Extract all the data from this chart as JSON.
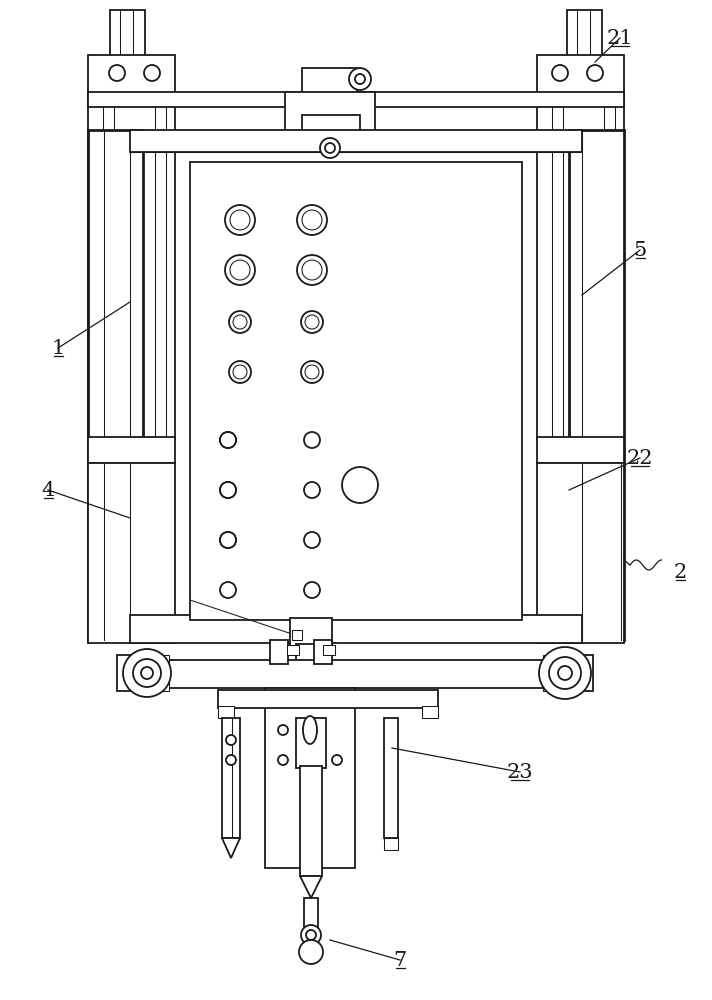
{
  "bg": "#ffffff",
  "lc": "#1a1a1a",
  "lw": 1.3,
  "tlw": 0.75,
  "thk": 2.0,
  "fs": 15
}
